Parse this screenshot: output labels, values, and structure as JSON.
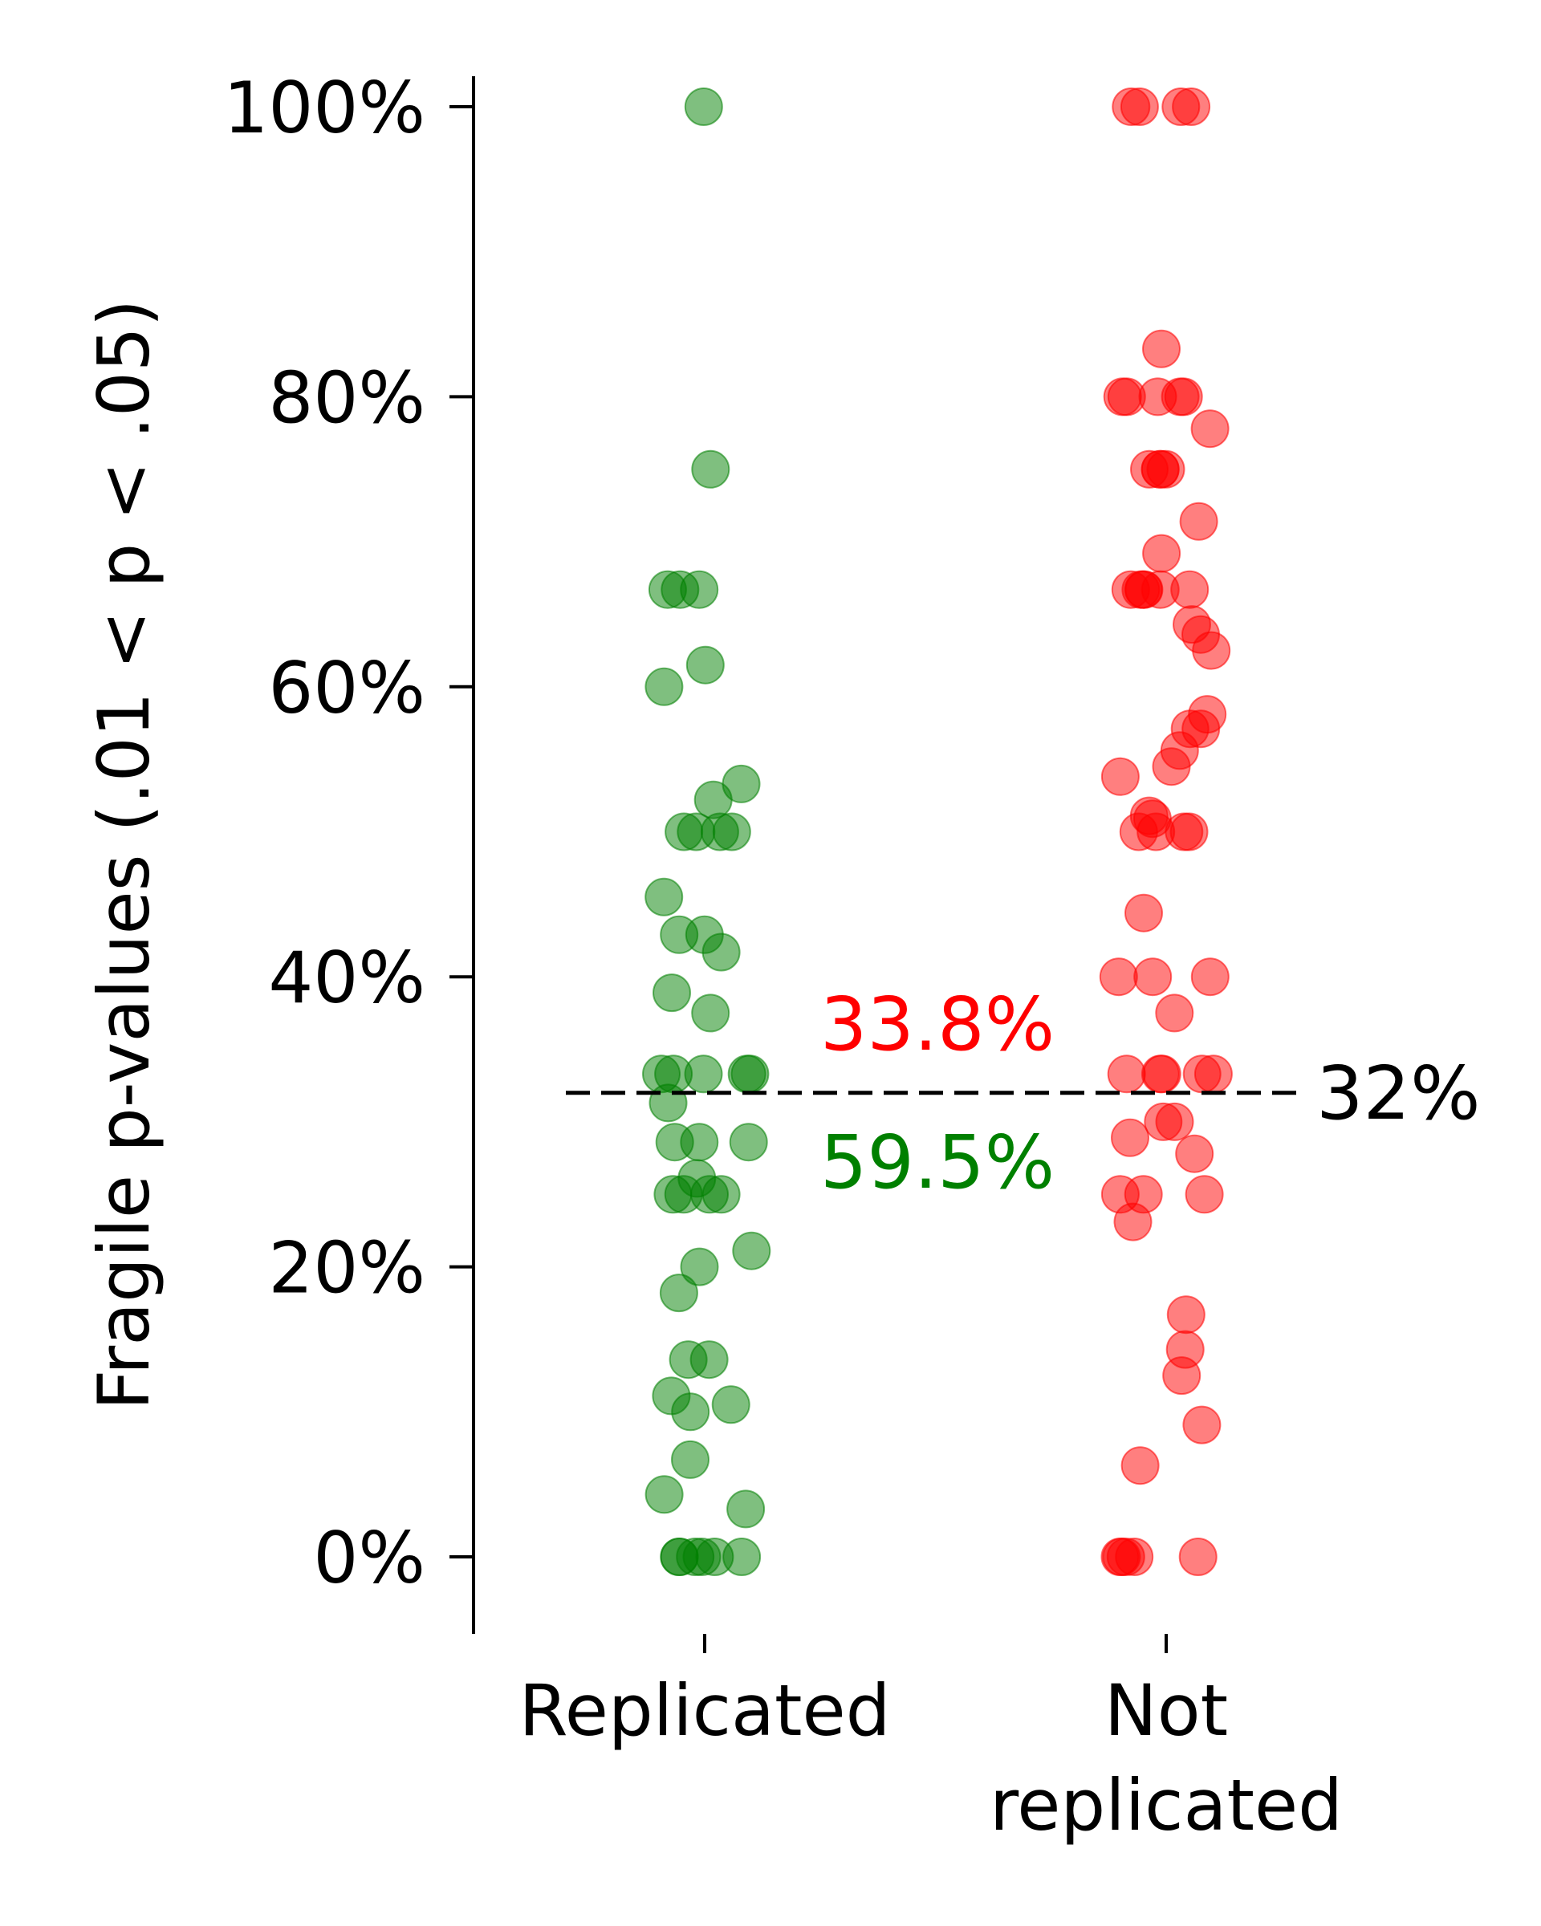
{
  "chart_data": {
    "type": "strip",
    "ylabel": "Fragile p-values (.01 < p < .05)",
    "categories": [
      "Replicated",
      "Not\nreplicated"
    ],
    "y_ticks": [
      "0%",
      "20%",
      "40%",
      "60%",
      "80%",
      "100%"
    ],
    "ylim": [
      -5,
      102
    ],
    "grid": false,
    "series": [
      {
        "color": "#008000",
        "values": [
          100,
          75,
          66.7,
          66.7,
          66.7,
          61.5,
          60,
          53.3,
          52.2,
          50,
          50,
          50,
          50,
          45.5,
          42.9,
          42.9,
          41.7,
          38.9,
          37.5,
          33.3,
          33.3,
          33.3,
          33.3,
          33.3,
          31.3,
          28.6,
          28.6,
          28.6,
          26.1,
          25,
          25,
          25,
          25,
          21.1,
          20,
          18.2,
          13.6,
          13.6,
          11.1,
          10.5,
          10,
          6.7,
          4.3,
          3.3,
          0,
          0,
          0,
          0,
          0,
          0
        ]
      },
      {
        "color": "#ff0000",
        "values": [
          100,
          100,
          100,
          100,
          83.3,
          80,
          80,
          80,
          80,
          80,
          77.8,
          75,
          75,
          75,
          75,
          71.4,
          69.2,
          66.7,
          66.7,
          66.7,
          66.7,
          66.7,
          66.7,
          64.3,
          63.6,
          62.5,
          58.1,
          57.1,
          57.1,
          55.6,
          54.5,
          53.8,
          51.1,
          50.9,
          50,
          50,
          50,
          50,
          44.4,
          40,
          40,
          40,
          37.5,
          33.3,
          33.3,
          33.3,
          33.3,
          33.3,
          30,
          30,
          28.9,
          27.8,
          25,
          25,
          25,
          23.1,
          16.7,
          14.3,
          12.5,
          9.1,
          6.3,
          0,
          0,
          0,
          0,
          0
        ]
      }
    ],
    "reference_line": {
      "value": 32,
      "label": "32%",
      "style": "dashed"
    },
    "annotations": [
      {
        "text": "33.8%",
        "color": "#ff0000"
      },
      {
        "text": "59.5%",
        "color": "#008000"
      }
    ]
  }
}
